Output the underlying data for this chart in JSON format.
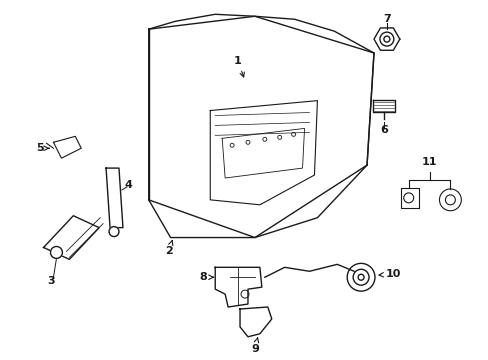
{
  "background_color": "#ffffff",
  "line_color": "#1a1a1a",
  "label_fontsize": 8,
  "figsize": [
    4.89,
    3.6
  ],
  "dpi": 100
}
